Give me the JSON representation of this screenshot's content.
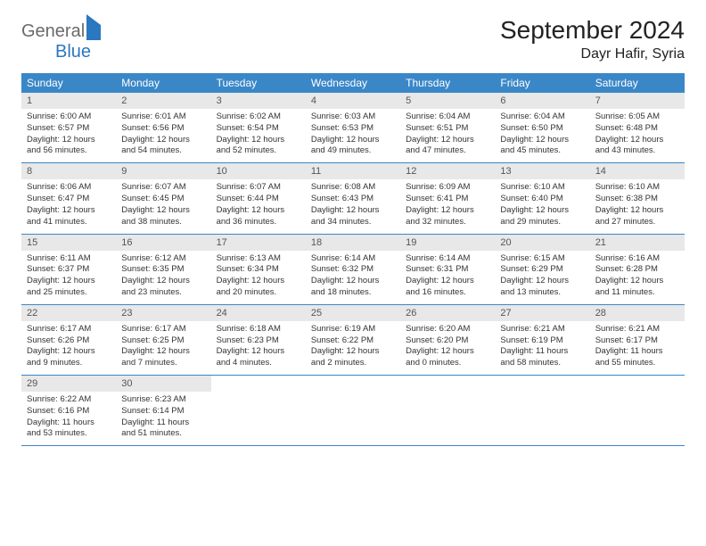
{
  "logo": {
    "text1": "General",
    "text2": "Blue"
  },
  "title": "September 2024",
  "location": "Dayr Hafir, Syria",
  "colors": {
    "header_bg": "#3a87c8",
    "header_fg": "#ffffff",
    "daynum_bg": "#e8e8e8",
    "daynum_fg": "#555555",
    "text": "#333333",
    "rule": "#3a87c8",
    "logo_gray": "#6a6a6a",
    "logo_blue": "#2b77c0"
  },
  "weekdays": [
    "Sunday",
    "Monday",
    "Tuesday",
    "Wednesday",
    "Thursday",
    "Friday",
    "Saturday"
  ],
  "days": [
    {
      "n": "1",
      "sr": "6:00 AM",
      "ss": "6:57 PM",
      "dl": "12 hours and 56 minutes."
    },
    {
      "n": "2",
      "sr": "6:01 AM",
      "ss": "6:56 PM",
      "dl": "12 hours and 54 minutes."
    },
    {
      "n": "3",
      "sr": "6:02 AM",
      "ss": "6:54 PM",
      "dl": "12 hours and 52 minutes."
    },
    {
      "n": "4",
      "sr": "6:03 AM",
      "ss": "6:53 PM",
      "dl": "12 hours and 49 minutes."
    },
    {
      "n": "5",
      "sr": "6:04 AM",
      "ss": "6:51 PM",
      "dl": "12 hours and 47 minutes."
    },
    {
      "n": "6",
      "sr": "6:04 AM",
      "ss": "6:50 PM",
      "dl": "12 hours and 45 minutes."
    },
    {
      "n": "7",
      "sr": "6:05 AM",
      "ss": "6:48 PM",
      "dl": "12 hours and 43 minutes."
    },
    {
      "n": "8",
      "sr": "6:06 AM",
      "ss": "6:47 PM",
      "dl": "12 hours and 41 minutes."
    },
    {
      "n": "9",
      "sr": "6:07 AM",
      "ss": "6:45 PM",
      "dl": "12 hours and 38 minutes."
    },
    {
      "n": "10",
      "sr": "6:07 AM",
      "ss": "6:44 PM",
      "dl": "12 hours and 36 minutes."
    },
    {
      "n": "11",
      "sr": "6:08 AM",
      "ss": "6:43 PM",
      "dl": "12 hours and 34 minutes."
    },
    {
      "n": "12",
      "sr": "6:09 AM",
      "ss": "6:41 PM",
      "dl": "12 hours and 32 minutes."
    },
    {
      "n": "13",
      "sr": "6:10 AM",
      "ss": "6:40 PM",
      "dl": "12 hours and 29 minutes."
    },
    {
      "n": "14",
      "sr": "6:10 AM",
      "ss": "6:38 PM",
      "dl": "12 hours and 27 minutes."
    },
    {
      "n": "15",
      "sr": "6:11 AM",
      "ss": "6:37 PM",
      "dl": "12 hours and 25 minutes."
    },
    {
      "n": "16",
      "sr": "6:12 AM",
      "ss": "6:35 PM",
      "dl": "12 hours and 23 minutes."
    },
    {
      "n": "17",
      "sr": "6:13 AM",
      "ss": "6:34 PM",
      "dl": "12 hours and 20 minutes."
    },
    {
      "n": "18",
      "sr": "6:14 AM",
      "ss": "6:32 PM",
      "dl": "12 hours and 18 minutes."
    },
    {
      "n": "19",
      "sr": "6:14 AM",
      "ss": "6:31 PM",
      "dl": "12 hours and 16 minutes."
    },
    {
      "n": "20",
      "sr": "6:15 AM",
      "ss": "6:29 PM",
      "dl": "12 hours and 13 minutes."
    },
    {
      "n": "21",
      "sr": "6:16 AM",
      "ss": "6:28 PM",
      "dl": "12 hours and 11 minutes."
    },
    {
      "n": "22",
      "sr": "6:17 AM",
      "ss": "6:26 PM",
      "dl": "12 hours and 9 minutes."
    },
    {
      "n": "23",
      "sr": "6:17 AM",
      "ss": "6:25 PM",
      "dl": "12 hours and 7 minutes."
    },
    {
      "n": "24",
      "sr": "6:18 AM",
      "ss": "6:23 PM",
      "dl": "12 hours and 4 minutes."
    },
    {
      "n": "25",
      "sr": "6:19 AM",
      "ss": "6:22 PM",
      "dl": "12 hours and 2 minutes."
    },
    {
      "n": "26",
      "sr": "6:20 AM",
      "ss": "6:20 PM",
      "dl": "12 hours and 0 minutes."
    },
    {
      "n": "27",
      "sr": "6:21 AM",
      "ss": "6:19 PM",
      "dl": "11 hours and 58 minutes."
    },
    {
      "n": "28",
      "sr": "6:21 AM",
      "ss": "6:17 PM",
      "dl": "11 hours and 55 minutes."
    },
    {
      "n": "29",
      "sr": "6:22 AM",
      "ss": "6:16 PM",
      "dl": "11 hours and 53 minutes."
    },
    {
      "n": "30",
      "sr": "6:23 AM",
      "ss": "6:14 PM",
      "dl": "11 hours and 51 minutes."
    }
  ],
  "labels": {
    "sunrise": "Sunrise:",
    "sunset": "Sunset:",
    "daylight": "Daylight:"
  },
  "layout": {
    "start_offset": 0,
    "cols": 7,
    "rows": 5
  }
}
